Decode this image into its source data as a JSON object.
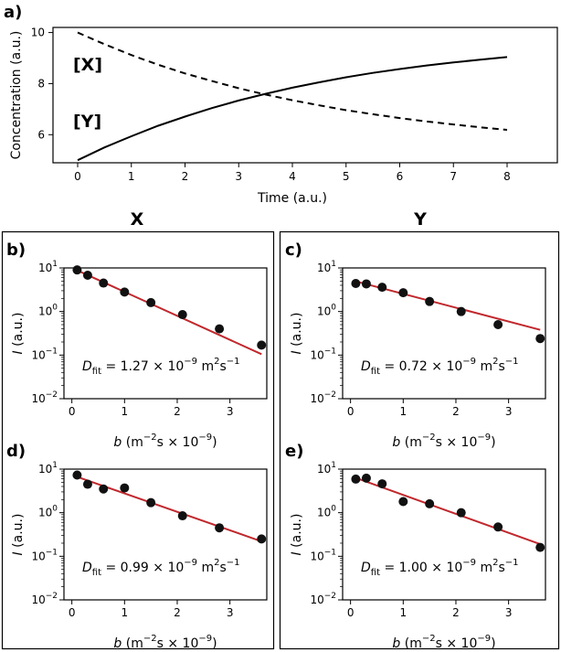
{
  "chart_data": [
    {
      "id": "a",
      "panel_label": "a)",
      "type": "line",
      "xlabel": "Time (a.u.)",
      "ylabel": "Concentration (a.u.)",
      "xlim": [
        0,
        8
      ],
      "ylim": [
        4.9,
        10.2
      ],
      "xticks": [
        "0",
        "1",
        "2",
        "3",
        "4",
        "5",
        "6",
        "7",
        "8"
      ],
      "yticks": [
        "6",
        "8",
        "10"
      ],
      "ytick_values": [
        6,
        8,
        10
      ],
      "grid": false,
      "series": [
        {
          "name": "[X]",
          "style": "dashed",
          "x": [
            0,
            0.5,
            1,
            1.5,
            2,
            2.5,
            3,
            3.5,
            4,
            4.5,
            5,
            5.5,
            6,
            6.5,
            7,
            7.5,
            8
          ],
          "y": [
            10.0,
            9.54,
            9.12,
            8.74,
            8.4,
            8.1,
            7.82,
            7.57,
            7.35,
            7.15,
            6.96,
            6.8,
            6.65,
            6.52,
            6.4,
            6.29,
            6.19
          ]
        },
        {
          "name": "[Y]",
          "style": "solid",
          "x": [
            0,
            0.5,
            1,
            1.5,
            2,
            2.5,
            3,
            3.5,
            4,
            4.5,
            5,
            5.5,
            6,
            6.5,
            7,
            7.5,
            8
          ],
          "y": [
            5.0,
            5.5,
            5.94,
            6.35,
            6.71,
            7.04,
            7.34,
            7.6,
            7.84,
            8.05,
            8.25,
            8.42,
            8.57,
            8.71,
            8.83,
            8.94,
            9.04
          ]
        }
      ]
    },
    {
      "id": "b",
      "panel_label": "b)",
      "group": "X",
      "type": "scatter",
      "xlabel_main": "b",
      "xlabel_rest": " (m",
      "xlabel_sup1": "−2",
      "xlabel_mid": "s × 10",
      "xlabel_sup2": "−9",
      "xlabel_end": ")",
      "ylabel_main": "I",
      "ylabel_rest": " (a.u.)",
      "xlim": [
        -0.15,
        3.7
      ],
      "yscale": "log",
      "ylim": [
        0.01,
        10
      ],
      "xticks": [
        "0",
        "1",
        "2",
        "3"
      ],
      "yticks": [
        {
          "base": "10",
          "exp": "1"
        },
        {
          "base": "10",
          "exp": "0"
        },
        {
          "base": "10",
          "exp": "−1"
        },
        {
          "base": "10",
          "exp": "−2"
        }
      ],
      "x": [
        0.1,
        0.3,
        0.6,
        1.0,
        1.5,
        2.1,
        2.8,
        3.6
      ],
      "y": [
        9.0,
        6.8,
        4.5,
        2.8,
        1.6,
        0.85,
        0.4,
        0.17
      ],
      "fit": {
        "x": [
          0.05,
          3.6
        ],
        "y": [
          9.4,
          0.105
        ]
      },
      "annotation": {
        "D": "D",
        "sub": "fit",
        "text": " = 1.27 × 10",
        "exp": "−9",
        "unit": " m",
        "unit_sup1": "2",
        "unit_mid": "s",
        "unit_sup2": "−1"
      }
    },
    {
      "id": "c",
      "panel_label": "c)",
      "group": "Y",
      "type": "scatter",
      "xlabel_main": "b",
      "xlabel_rest": " (m",
      "xlabel_sup1": "−2",
      "xlabel_mid": "s × 10",
      "xlabel_sup2": "−9",
      "xlabel_end": ")",
      "ylabel_main": "I",
      "ylabel_rest": " (a.u.)",
      "xlim": [
        -0.15,
        3.7
      ],
      "yscale": "log",
      "ylim": [
        0.01,
        10
      ],
      "xticks": [
        "0",
        "1",
        "2",
        "3"
      ],
      "yticks": [
        {
          "base": "10",
          "exp": "1"
        },
        {
          "base": "10",
          "exp": "0"
        },
        {
          "base": "10",
          "exp": "−1"
        },
        {
          "base": "10",
          "exp": "−2"
        }
      ],
      "x": [
        0.1,
        0.3,
        0.6,
        1.0,
        1.5,
        2.1,
        2.8,
        3.6
      ],
      "y": [
        4.4,
        4.3,
        3.6,
        2.7,
        1.7,
        1.0,
        0.5,
        0.24
      ],
      "fit": {
        "x": [
          0.05,
          3.6
        ],
        "y": [
          5.1,
          0.38
        ]
      },
      "annotation": {
        "D": "D",
        "sub": "fit",
        "text": " = 0.72 × 10",
        "exp": "−9",
        "unit": " m",
        "unit_sup1": "2",
        "unit_mid": "s",
        "unit_sup2": "−1"
      }
    },
    {
      "id": "d",
      "panel_label": "d)",
      "group": "X",
      "type": "scatter",
      "xlabel_main": "b",
      "xlabel_rest": " (m",
      "xlabel_sup1": "−2",
      "xlabel_mid": "s × 10",
      "xlabel_sup2": "−9",
      "xlabel_end": ")",
      "ylabel_main": "I",
      "ylabel_rest": " (a.u.)",
      "xlim": [
        -0.15,
        3.7
      ],
      "yscale": "log",
      "ylim": [
        0.01,
        10
      ],
      "xticks": [
        "0",
        "1",
        "2",
        "3"
      ],
      "yticks": [
        {
          "base": "10",
          "exp": "1"
        },
        {
          "base": "10",
          "exp": "0"
        },
        {
          "base": "10",
          "exp": "−1"
        },
        {
          "base": "10",
          "exp": "−2"
        }
      ],
      "x": [
        0.1,
        0.3,
        0.6,
        1.0,
        1.5,
        2.1,
        2.8,
        3.6
      ],
      "y": [
        7.3,
        4.5,
        3.5,
        3.7,
        1.7,
        0.85,
        0.45,
        0.25
      ],
      "fit": {
        "x": [
          0.05,
          3.6
        ],
        "y": [
          7.0,
          0.22
        ]
      },
      "annotation": {
        "D": "D",
        "sub": "fit",
        "text": " = 0.99 × 10",
        "exp": "−9",
        "unit": " m",
        "unit_sup1": "2",
        "unit_mid": "s",
        "unit_sup2": "−1"
      }
    },
    {
      "id": "e",
      "panel_label": "e)",
      "group": "Y",
      "type": "scatter",
      "xlabel_main": "b",
      "xlabel_rest": " (m",
      "xlabel_sup1": "−2",
      "xlabel_mid": "s × 10",
      "xlabel_sup2": "−9",
      "xlabel_end": ")",
      "ylabel_main": "I",
      "ylabel_rest": " (a.u.)",
      "xlim": [
        -0.15,
        3.7
      ],
      "yscale": "log",
      "ylim": [
        0.01,
        10
      ],
      "xticks": [
        "0",
        "1",
        "2",
        "3"
      ],
      "yticks": [
        {
          "base": "10",
          "exp": "1"
        },
        {
          "base": "10",
          "exp": "0"
        },
        {
          "base": "10",
          "exp": "−1"
        },
        {
          "base": "10",
          "exp": "−2"
        }
      ],
      "x": [
        0.1,
        0.3,
        0.6,
        1.0,
        1.5,
        2.1,
        2.8,
        3.6
      ],
      "y": [
        5.9,
        6.2,
        4.6,
        1.8,
        1.6,
        1.0,
        0.47,
        0.16
      ],
      "fit": {
        "x": [
          0.05,
          3.6
        ],
        "y": [
          6.6,
          0.19
        ]
      },
      "annotation": {
        "D": "D",
        "sub": "fit",
        "text": " = 1.00 × 10",
        "exp": "−9",
        "unit": " m",
        "unit_sup1": "2",
        "unit_mid": "s",
        "unit_sup2": "−1"
      }
    }
  ],
  "groups": {
    "left": "X",
    "right": "Y"
  },
  "colors": {
    "fit": "#c0282d",
    "marker": "#111111",
    "axis": "#000000"
  }
}
